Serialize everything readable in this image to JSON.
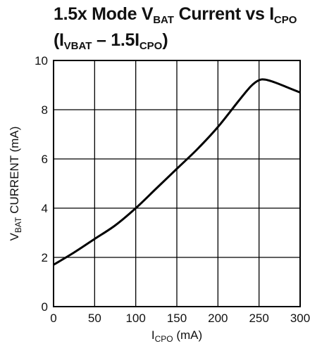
{
  "chart_data": {
    "type": "line",
    "title": {
      "line1": [
        {
          "text": "1.5x Mode V"
        },
        {
          "text": "BAT",
          "sub": true
        },
        {
          "text": " Current vs I"
        },
        {
          "text": "CPO",
          "sub": true
        }
      ],
      "line2": [
        {
          "text": "(I"
        },
        {
          "text": "VBAT",
          "sub": true
        },
        {
          "text": " – 1.5I"
        },
        {
          "text": "CPO",
          "sub": true
        },
        {
          "text": ")"
        }
      ]
    },
    "xlabel": [
      {
        "text": "I"
      },
      {
        "text": "CPO",
        "sub": true
      },
      {
        "text": " (mA)"
      }
    ],
    "ylabel": [
      {
        "text": "V"
      },
      {
        "text": "BAT",
        "sub": true
      },
      {
        "text": " CURRENT (mA)"
      }
    ],
    "xlim": [
      0,
      300
    ],
    "ylim": [
      0,
      10
    ],
    "xticks": [
      0,
      50,
      100,
      150,
      200,
      250,
      300
    ],
    "yticks": [
      0,
      2,
      4,
      6,
      8,
      10
    ],
    "grid": true,
    "series": [
      {
        "color": "#000000",
        "x": [
          0,
          25,
          50,
          75,
          100,
          125,
          150,
          175,
          200,
          225,
          240,
          250,
          258,
          270,
          285,
          300
        ],
        "y": [
          1.7,
          2.2,
          2.75,
          3.3,
          4.0,
          4.8,
          5.6,
          6.4,
          7.3,
          8.35,
          8.95,
          9.2,
          9.22,
          9.1,
          8.9,
          8.7
        ]
      }
    ]
  }
}
